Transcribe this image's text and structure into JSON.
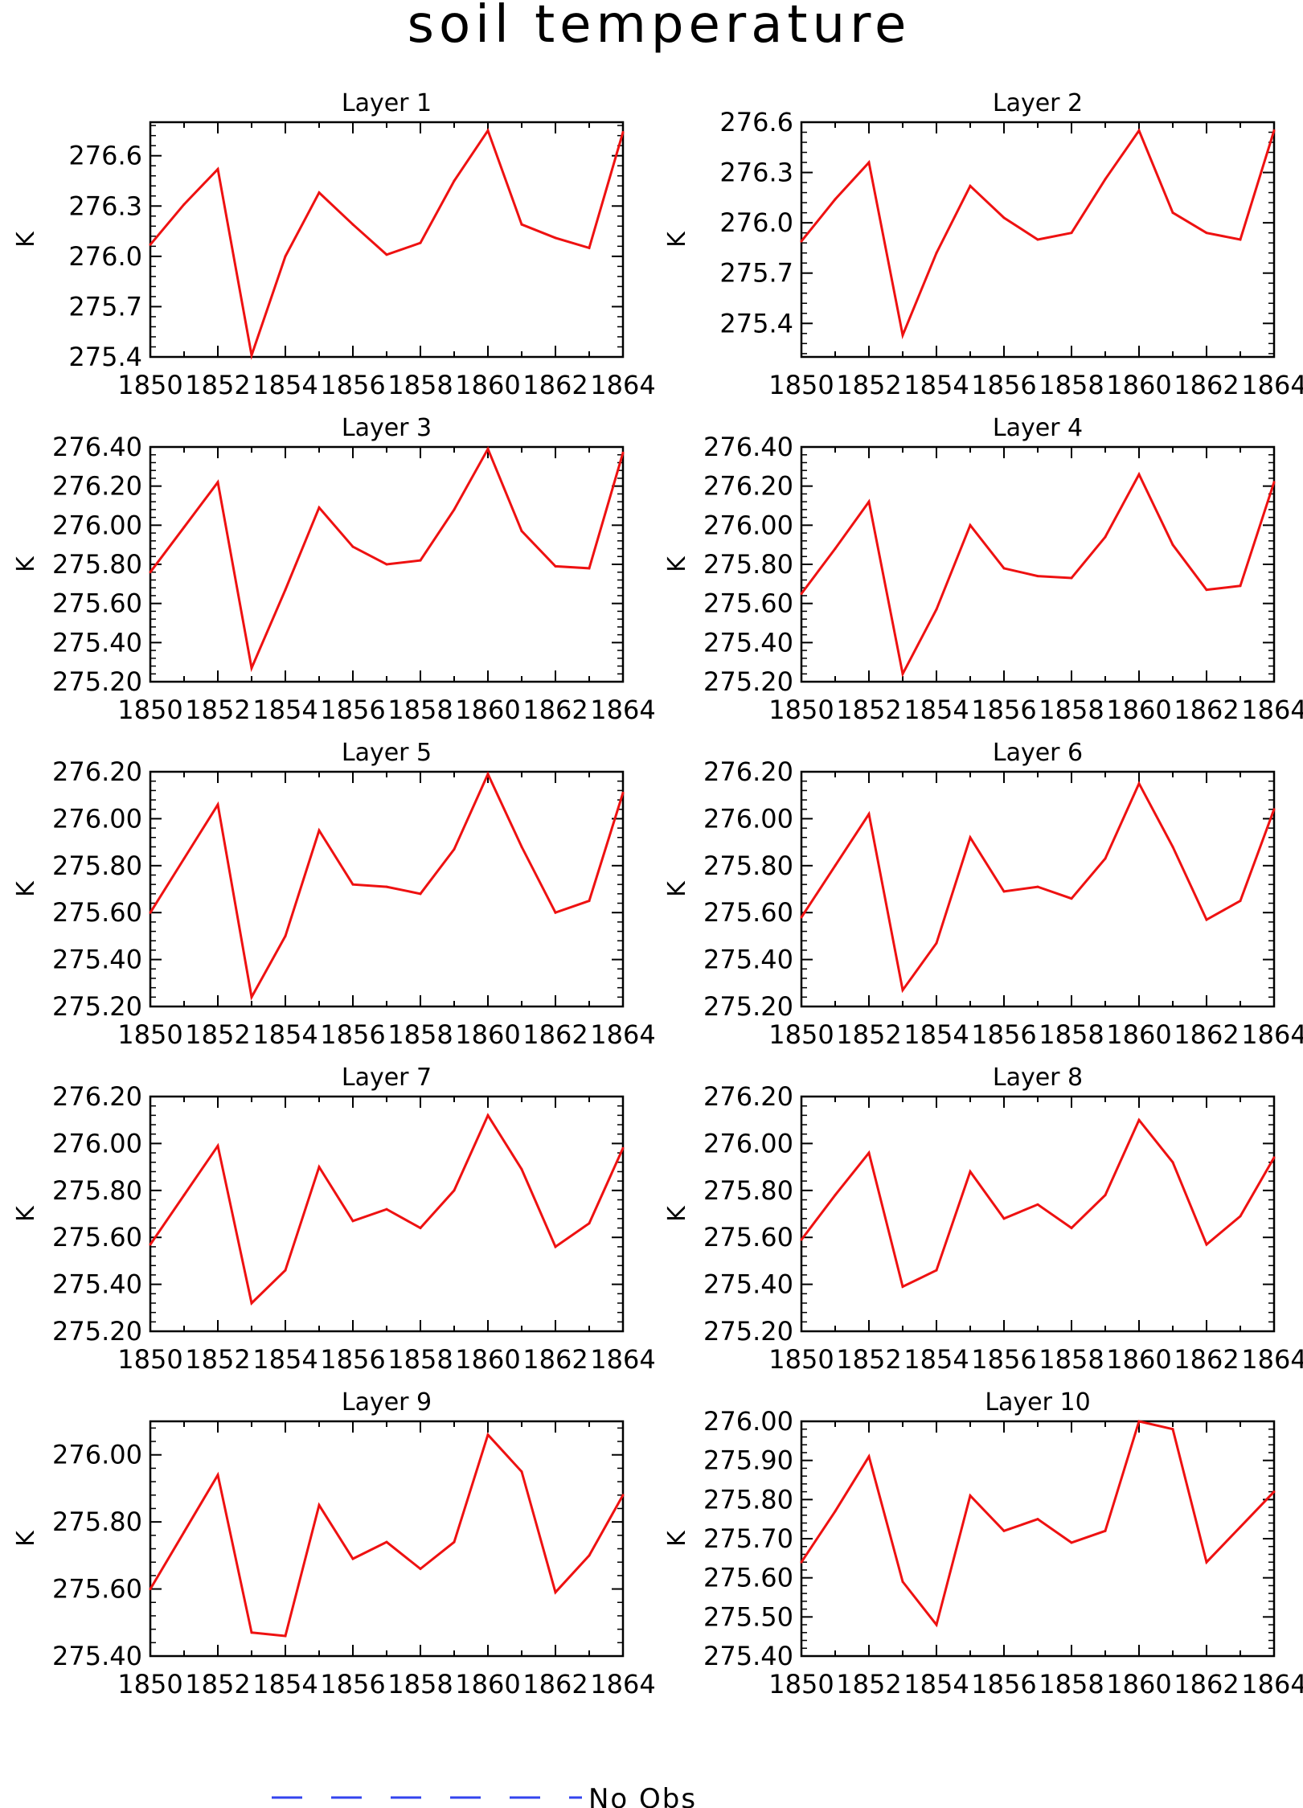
{
  "title": "soil temperature",
  "legend": {
    "label": "No Obs",
    "color": "#3344ee",
    "style": "dashed"
  },
  "series_color": "#ee1111",
  "chart_data": [
    {
      "type": "line",
      "title": "Layer 1",
      "ylabel": "K",
      "x": [
        1850,
        1851,
        1852,
        1853,
        1854,
        1855,
        1856,
        1857,
        1858,
        1859,
        1860,
        1861,
        1862,
        1863,
        1864
      ],
      "xlim": [
        1850,
        1864
      ],
      "xticks": [
        "1850",
        "1852",
        "1854",
        "1856",
        "1858",
        "1860",
        "1862",
        "1864"
      ],
      "values": [
        276.07,
        276.31,
        276.52,
        275.41,
        276.0,
        276.38,
        276.19,
        276.01,
        276.08,
        276.45,
        276.75,
        276.19,
        276.11,
        276.05,
        276.74
      ],
      "ylim": [
        275.4,
        276.8
      ],
      "yticks": [
        "275.4",
        "275.7",
        "276.0",
        "276.3",
        "276.6"
      ]
    },
    {
      "type": "line",
      "title": "Layer 2",
      "ylabel": "K",
      "x": [
        1850,
        1851,
        1852,
        1853,
        1854,
        1855,
        1856,
        1857,
        1858,
        1859,
        1860,
        1861,
        1862,
        1863,
        1864
      ],
      "xlim": [
        1850,
        1864
      ],
      "xticks": [
        "1850",
        "1852",
        "1854",
        "1856",
        "1858",
        "1860",
        "1862",
        "1864"
      ],
      "values": [
        275.89,
        276.14,
        276.36,
        275.33,
        275.82,
        276.22,
        276.03,
        275.9,
        275.94,
        276.26,
        276.55,
        276.06,
        275.94,
        275.9,
        276.55
      ],
      "ylim": [
        275.2,
        276.6
      ],
      "yticks": [
        "275.4",
        "275.7",
        "276.0",
        "276.3",
        "276.6"
      ]
    },
    {
      "type": "line",
      "title": "Layer 3",
      "ylabel": "K",
      "x": [
        1850,
        1851,
        1852,
        1853,
        1854,
        1855,
        1856,
        1857,
        1858,
        1859,
        1860,
        1861,
        1862,
        1863,
        1864
      ],
      "xlim": [
        1850,
        1864
      ],
      "xticks": [
        "1850",
        "1852",
        "1854",
        "1856",
        "1858",
        "1860",
        "1862",
        "1864"
      ],
      "values": [
        275.76,
        275.99,
        276.22,
        275.27,
        275.67,
        276.09,
        275.89,
        275.8,
        275.82,
        276.08,
        276.39,
        275.97,
        275.79,
        275.78,
        276.37
      ],
      "ylim": [
        275.2,
        276.4
      ],
      "yticks": [
        "275.20",
        "275.40",
        "275.60",
        "275.80",
        "276.00",
        "276.20",
        "276.40"
      ]
    },
    {
      "type": "line",
      "title": "Layer 4",
      "ylabel": "K",
      "x": [
        1850,
        1851,
        1852,
        1853,
        1854,
        1855,
        1856,
        1857,
        1858,
        1859,
        1860,
        1861,
        1862,
        1863,
        1864
      ],
      "xlim": [
        1850,
        1864
      ],
      "xticks": [
        "1850",
        "1852",
        "1854",
        "1856",
        "1858",
        "1860",
        "1862",
        "1864"
      ],
      "values": [
        275.65,
        275.88,
        276.12,
        275.24,
        275.57,
        276.0,
        275.78,
        275.74,
        275.73,
        275.94,
        276.26,
        275.9,
        275.67,
        275.69,
        276.22
      ],
      "ylim": [
        275.2,
        276.4
      ],
      "yticks": [
        "275.20",
        "275.40",
        "275.60",
        "275.80",
        "276.00",
        "276.20",
        "276.40"
      ]
    },
    {
      "type": "line",
      "title": "Layer 5",
      "ylabel": "K",
      "x": [
        1850,
        1851,
        1852,
        1853,
        1854,
        1855,
        1856,
        1857,
        1858,
        1859,
        1860,
        1861,
        1862,
        1863,
        1864
      ],
      "xlim": [
        1850,
        1864
      ],
      "xticks": [
        "1850",
        "1852",
        "1854",
        "1856",
        "1858",
        "1860",
        "1862",
        "1864"
      ],
      "values": [
        275.6,
        275.83,
        276.06,
        275.24,
        275.5,
        275.95,
        275.72,
        275.71,
        275.68,
        275.87,
        276.19,
        275.88,
        275.6,
        275.65,
        276.11
      ],
      "ylim": [
        275.2,
        276.2
      ],
      "yticks": [
        "275.20",
        "275.40",
        "275.60",
        "275.80",
        "276.00",
        "276.20"
      ]
    },
    {
      "type": "line",
      "title": "Layer 6",
      "ylabel": "K",
      "x": [
        1850,
        1851,
        1852,
        1853,
        1854,
        1855,
        1856,
        1857,
        1858,
        1859,
        1860,
        1861,
        1862,
        1863,
        1864
      ],
      "xlim": [
        1850,
        1864
      ],
      "xticks": [
        "1850",
        "1852",
        "1854",
        "1856",
        "1858",
        "1860",
        "1862",
        "1864"
      ],
      "values": [
        275.58,
        275.8,
        276.02,
        275.27,
        275.47,
        275.92,
        275.69,
        275.71,
        275.66,
        275.83,
        276.15,
        275.88,
        275.57,
        275.65,
        276.04
      ],
      "ylim": [
        275.2,
        276.2
      ],
      "yticks": [
        "275.20",
        "275.40",
        "275.60",
        "275.80",
        "276.00",
        "276.20"
      ]
    },
    {
      "type": "line",
      "title": "Layer 7",
      "ylabel": "K",
      "x": [
        1850,
        1851,
        1852,
        1853,
        1854,
        1855,
        1856,
        1857,
        1858,
        1859,
        1860,
        1861,
        1862,
        1863,
        1864
      ],
      "xlim": [
        1850,
        1864
      ],
      "xticks": [
        "1850",
        "1852",
        "1854",
        "1856",
        "1858",
        "1860",
        "1862",
        "1864"
      ],
      "values": [
        275.57,
        275.78,
        275.99,
        275.32,
        275.46,
        275.9,
        275.67,
        275.72,
        275.64,
        275.8,
        276.12,
        275.89,
        275.56,
        275.66,
        275.98
      ],
      "ylim": [
        275.2,
        276.2
      ],
      "yticks": [
        "275.20",
        "275.40",
        "275.60",
        "275.80",
        "276.00",
        "276.20"
      ]
    },
    {
      "type": "line",
      "title": "Layer 8",
      "ylabel": "K",
      "x": [
        1850,
        1851,
        1852,
        1853,
        1854,
        1855,
        1856,
        1857,
        1858,
        1859,
        1860,
        1861,
        1862,
        1863,
        1864
      ],
      "xlim": [
        1850,
        1864
      ],
      "xticks": [
        "1850",
        "1852",
        "1854",
        "1856",
        "1858",
        "1860",
        "1862",
        "1864"
      ],
      "values": [
        275.59,
        275.78,
        275.96,
        275.39,
        275.46,
        275.88,
        275.68,
        275.74,
        275.64,
        275.78,
        276.1,
        275.92,
        275.57,
        275.69,
        275.94
      ],
      "ylim": [
        275.2,
        276.2
      ],
      "yticks": [
        "275.20",
        "275.40",
        "275.60",
        "275.80",
        "276.00",
        "276.20"
      ]
    },
    {
      "type": "line",
      "title": "Layer 9",
      "ylabel": "K",
      "x": [
        1850,
        1851,
        1852,
        1853,
        1854,
        1855,
        1856,
        1857,
        1858,
        1859,
        1860,
        1861,
        1862,
        1863,
        1864
      ],
      "xlim": [
        1850,
        1864
      ],
      "xticks": [
        "1850",
        "1852",
        "1854",
        "1856",
        "1858",
        "1860",
        "1862",
        "1864"
      ],
      "values": [
        275.6,
        275.77,
        275.94,
        275.47,
        275.46,
        275.85,
        275.69,
        275.74,
        275.66,
        275.74,
        276.06,
        275.95,
        275.59,
        275.7,
        275.88
      ],
      "ylim": [
        275.4,
        276.1
      ],
      "yticks": [
        "275.40",
        "275.60",
        "275.80",
        "276.00"
      ]
    },
    {
      "type": "line",
      "title": "Layer 10",
      "ylabel": "K",
      "x": [
        1850,
        1851,
        1852,
        1853,
        1854,
        1855,
        1856,
        1857,
        1858,
        1859,
        1860,
        1861,
        1862,
        1863,
        1864
      ],
      "xlim": [
        1850,
        1864
      ],
      "xticks": [
        "1850",
        "1852",
        "1854",
        "1856",
        "1858",
        "1860",
        "1862",
        "1864"
      ],
      "values": [
        275.64,
        275.77,
        275.91,
        275.59,
        275.48,
        275.81,
        275.72,
        275.75,
        275.69,
        275.72,
        276.0,
        275.98,
        275.64,
        275.73,
        275.82
      ],
      "ylim": [
        275.4,
        276.0
      ],
      "yticks": [
        "275.40",
        "275.50",
        "275.60",
        "275.70",
        "275.80",
        "275.90",
        "276.00"
      ]
    }
  ]
}
